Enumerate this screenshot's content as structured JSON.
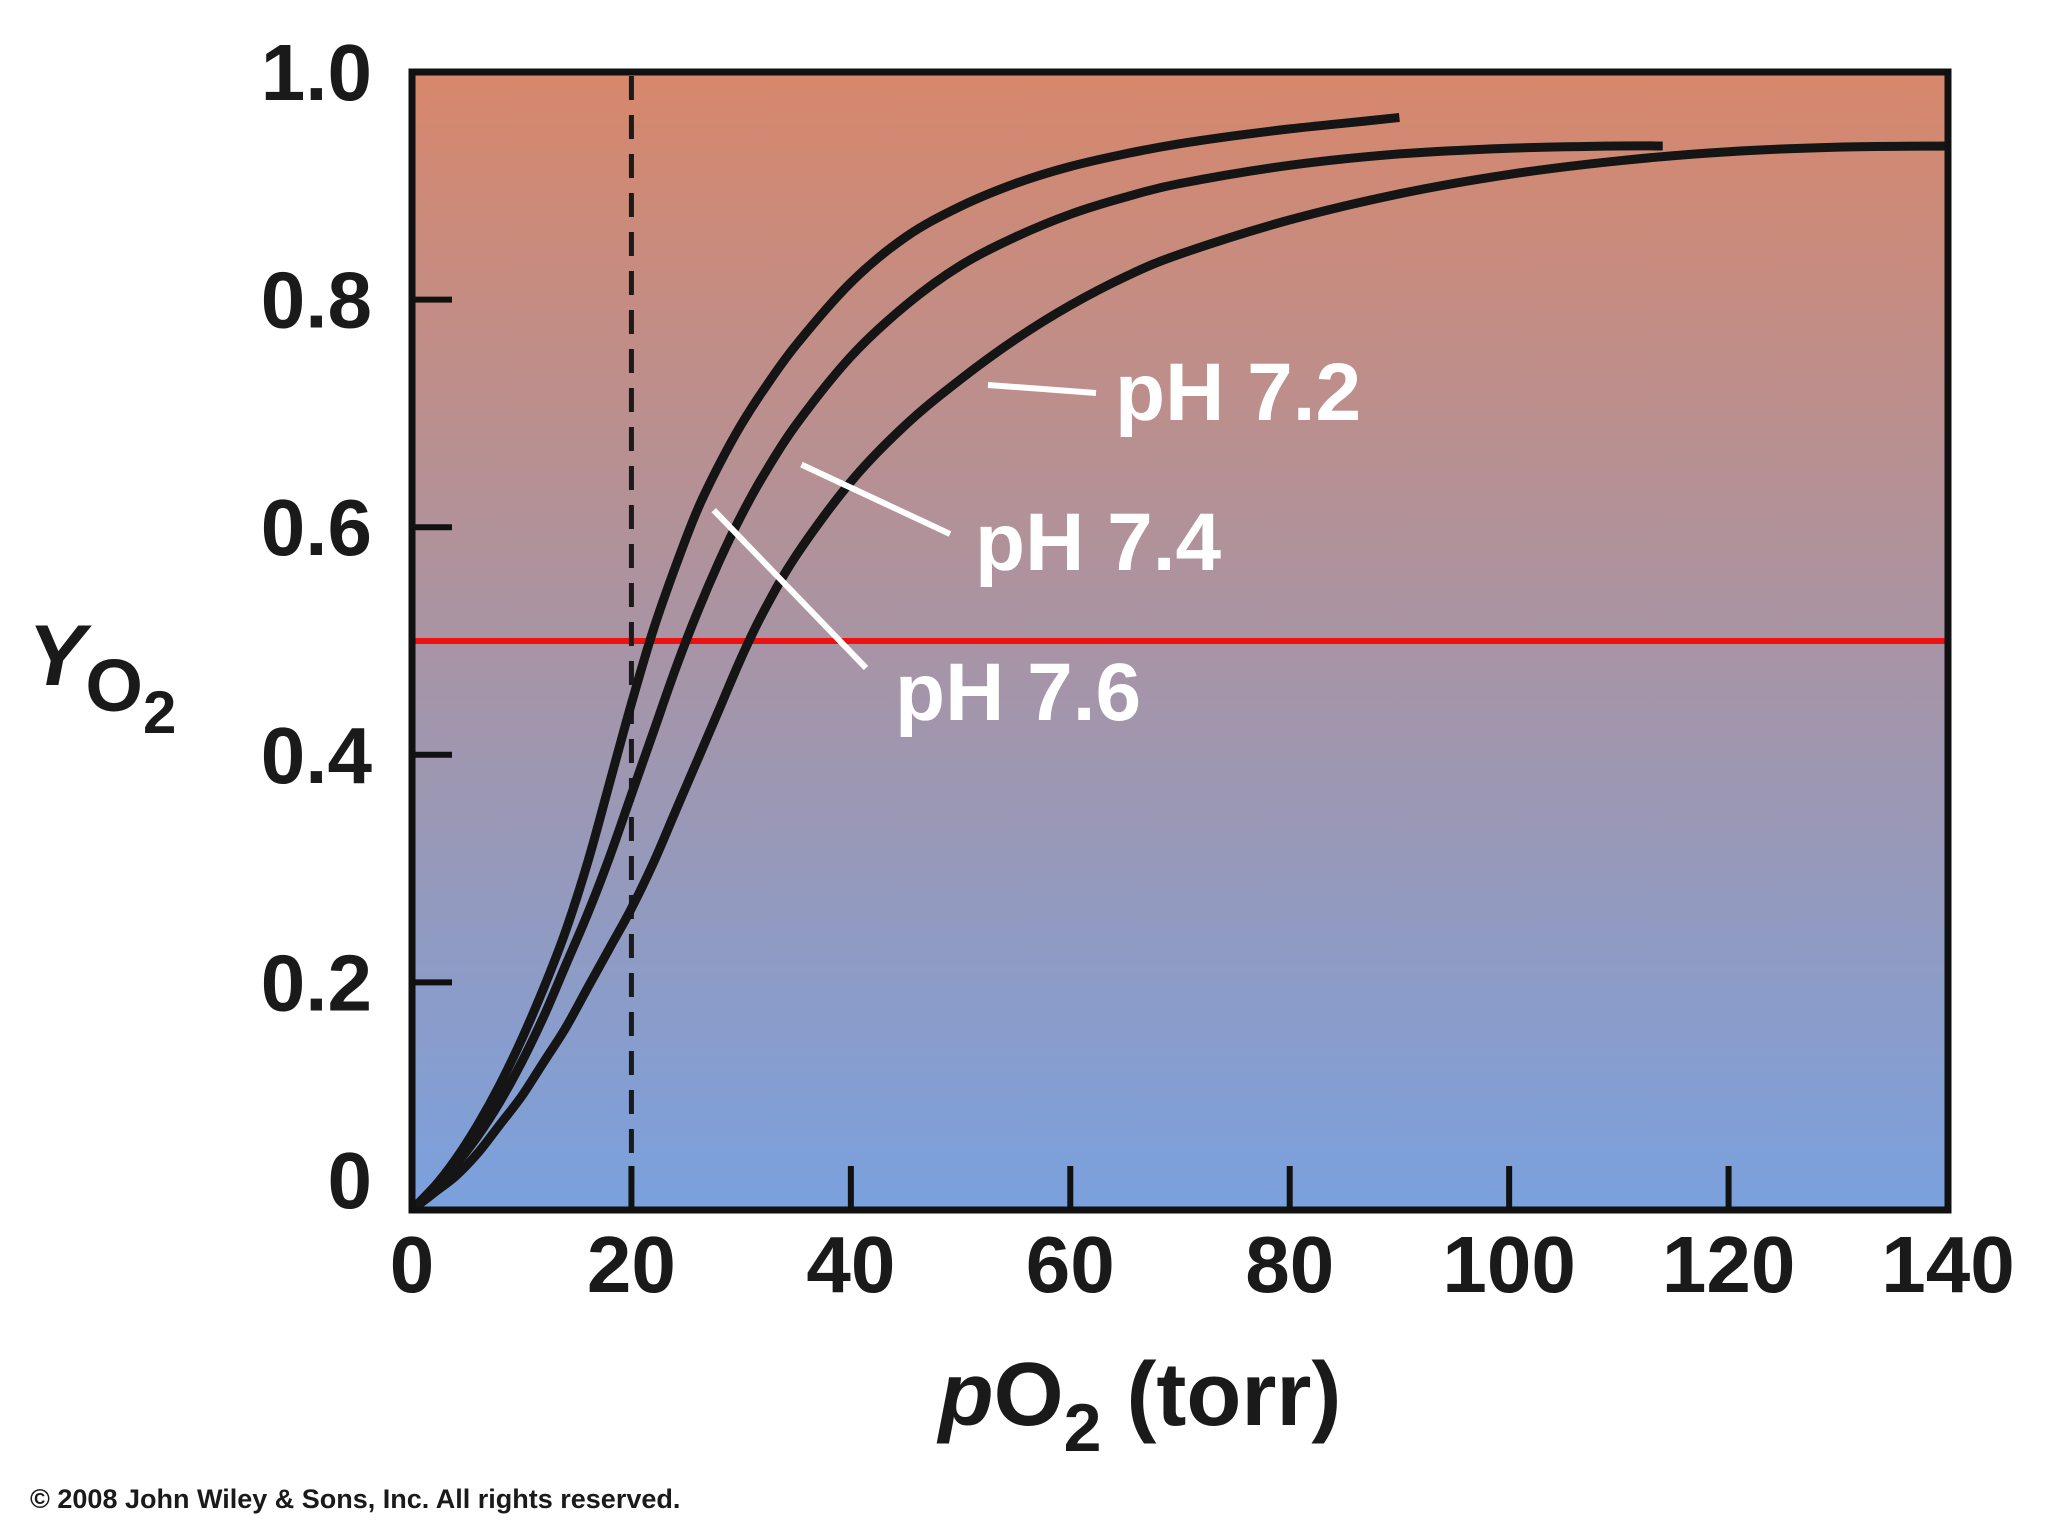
{
  "chart_data": {
    "type": "line",
    "title": "",
    "xlabel_italic": "p",
    "xlabel_main": "O",
    "xlabel_sub": "2",
    "xlabel_units": " (torr)",
    "ylabel_main": "Y",
    "ylabel_sub": "O",
    "ylabel_subsub": "2",
    "xlim": [
      0,
      140
    ],
    "ylim": [
      0,
      1.0
    ],
    "x_ticks": [
      0,
      20,
      40,
      60,
      80,
      100,
      120,
      140
    ],
    "x_tick_labels": [
      "0",
      "20",
      "40",
      "60",
      "80",
      "100",
      "120",
      "140"
    ],
    "y_ticks": [
      0,
      0.2,
      0.4,
      0.6,
      0.8,
      1.0
    ],
    "y_tick_labels": [
      "0",
      "0.2",
      "0.4",
      "0.6",
      "0.8",
      "1.0"
    ],
    "grid": false,
    "background_gradient": {
      "top": "#d7876b",
      "bottom": "#7aa1de"
    },
    "reference_lines": [
      {
        "name": "half-saturation-line",
        "orientation": "horizontal",
        "value": 0.5,
        "color": "#ee1111",
        "style": "solid"
      },
      {
        "name": "tissue-po2-line",
        "orientation": "vertical",
        "value": 20,
        "color": "#1a1a1a",
        "style": "dashed"
      }
    ],
    "series": [
      {
        "name": "pH 7.6",
        "label": "pH 7.6",
        "label_anchor": [
          27.5,
          0.615
        ],
        "x": [
          0,
          2,
          4,
          6,
          8,
          10,
          12,
          14,
          16,
          18,
          20,
          22,
          24,
          26,
          28,
          30,
          32,
          35,
          40,
          45,
          50,
          55,
          60,
          65,
          70,
          75,
          80,
          85,
          90
        ],
        "y": [
          0,
          0.02,
          0.045,
          0.075,
          0.11,
          0.15,
          0.195,
          0.245,
          0.305,
          0.375,
          0.445,
          0.51,
          0.565,
          0.615,
          0.655,
          0.69,
          0.72,
          0.76,
          0.815,
          0.855,
          0.882,
          0.902,
          0.917,
          0.928,
          0.937,
          0.944,
          0.95,
          0.955,
          0.96
        ]
      },
      {
        "name": "pH 7.4",
        "label": "pH 7.4",
        "label_anchor": [
          35.5,
          0.655
        ],
        "x": [
          0,
          2,
          4,
          6,
          8,
          10,
          12,
          14,
          16,
          18,
          20,
          22,
          24,
          26,
          28,
          30,
          32,
          35,
          40,
          45,
          50,
          55,
          60,
          65,
          70,
          80,
          90,
          100,
          110,
          114
        ],
        "y": [
          0,
          0.02,
          0.04,
          0.065,
          0.095,
          0.13,
          0.17,
          0.215,
          0.26,
          0.31,
          0.365,
          0.42,
          0.475,
          0.525,
          0.57,
          0.61,
          0.645,
          0.69,
          0.75,
          0.795,
          0.83,
          0.855,
          0.875,
          0.89,
          0.902,
          0.918,
          0.928,
          0.933,
          0.935,
          0.935
        ]
      },
      {
        "name": "pH 7.2",
        "label": "pH 7.2",
        "label_anchor": [
          52.5,
          0.725
        ],
        "x": [
          0,
          2,
          4,
          6,
          8,
          10,
          12,
          14,
          16,
          18,
          20,
          22,
          24,
          26,
          28,
          30,
          32,
          35,
          40,
          45,
          50,
          55,
          60,
          65,
          70,
          80,
          90,
          100,
          110,
          120,
          130,
          140
        ],
        "y": [
          0,
          0.015,
          0.03,
          0.05,
          0.075,
          0.1,
          0.13,
          0.16,
          0.195,
          0.23,
          0.265,
          0.305,
          0.35,
          0.395,
          0.44,
          0.485,
          0.525,
          0.575,
          0.64,
          0.69,
          0.73,
          0.765,
          0.795,
          0.82,
          0.84,
          0.87,
          0.893,
          0.91,
          0.922,
          0.93,
          0.934,
          0.935
        ]
      }
    ]
  },
  "copyright": "© 2008 John Wiley & Sons, Inc. All rights reserved."
}
